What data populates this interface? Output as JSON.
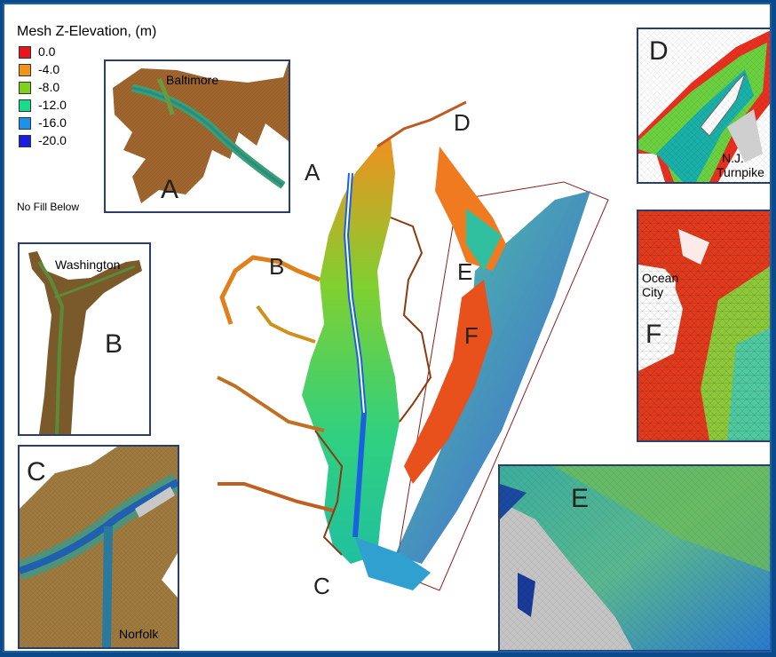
{
  "legend": {
    "title": "Mesh Z-Elevation, (m)",
    "items": [
      {
        "label": "0.0",
        "color": "#e8141e"
      },
      {
        "label": "-4.0",
        "color": "#f29418"
      },
      {
        "label": "-8.0",
        "color": "#7fd21c"
      },
      {
        "label": "-12.0",
        "color": "#16dc8c"
      },
      {
        "label": "-16.0",
        "color": "#1c92e8"
      },
      {
        "label": "-20.0",
        "color": "#1c1ce0"
      }
    ],
    "no_fill_label": "No Fill Below"
  },
  "insets": {
    "a": {
      "letter": "A",
      "place": "Baltimore"
    },
    "b": {
      "letter": "B",
      "place": "Washington"
    },
    "c": {
      "letter": "C",
      "place": "Norfolk"
    },
    "d": {
      "letter": "D",
      "place_line1": "N.J.",
      "place_line2": "Turnpike"
    },
    "e": {
      "letter": "E"
    },
    "f": {
      "letter": "F",
      "place_line1": "Ocean",
      "place_line2": "City"
    }
  },
  "main_map": {
    "labels": [
      "A",
      "B",
      "C",
      "D",
      "E",
      "F"
    ]
  }
}
